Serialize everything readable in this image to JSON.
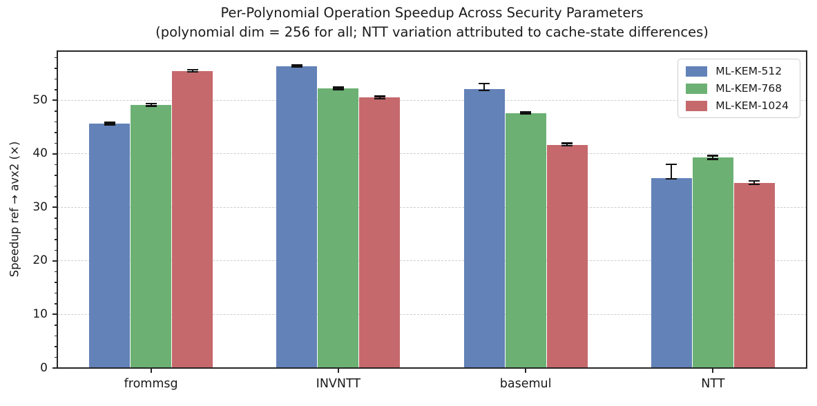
{
  "figure": {
    "title_line1": "Per-Polynomial Operation Speedup Across Security Parameters",
    "title_line2": "(polynomial dim = 256 for all; NTT variation attributed to cache-state differences)",
    "ylabel": "Speedup ref → avx2 (×)",
    "background": "#ffffff",
    "text_color": "#1a1a1a",
    "spine_color": "#262626",
    "grid_color": "#cccccc"
  },
  "chart_data": {
    "type": "bar",
    "title": "Per-Polynomial Operation Speedup Across Security Parameters",
    "subtitle": "(polynomial dim = 256 for all; NTT variation attributed to cache-state differences)",
    "xlabel": "",
    "ylabel": "Speedup ref → avx2 (×)",
    "categories": [
      "frommsg",
      "INVNTT",
      "basemul",
      "NTT"
    ],
    "series": [
      {
        "name": "ML-KEM-512",
        "color": "#6282B8",
        "values": [
          45.6,
          56.4,
          52.1,
          35.5
        ],
        "err_minus": [
          0.2,
          0.2,
          0.3,
          0.2
        ],
        "err_plus": [
          0.3,
          0.2,
          1.1,
          2.6
        ]
      },
      {
        "name": "ML-KEM-768",
        "color": "#6CB173",
        "values": [
          49.1,
          52.2,
          47.6,
          39.3
        ],
        "err_minus": [
          0.2,
          0.2,
          0.2,
          0.3
        ],
        "err_plus": [
          0.3,
          0.25,
          0.25,
          0.4
        ]
      },
      {
        "name": "ML-KEM-1024",
        "color": "#C5696D",
        "values": [
          55.5,
          50.5,
          41.7,
          34.6
        ],
        "err_minus": [
          0.2,
          0.2,
          0.2,
          0.3
        ],
        "err_plus": [
          0.25,
          0.3,
          0.3,
          0.4
        ]
      }
    ],
    "yticks": [
      0,
      10,
      20,
      30,
      40,
      50
    ],
    "ylim": [
      0,
      59.2
    ],
    "minor_tick_step": 2,
    "grid": {
      "axis": "y",
      "style": "dashed"
    },
    "error_bars": true,
    "legend": {
      "position": "upper right",
      "entries": [
        "ML-KEM-512",
        "ML-KEM-768",
        "ML-KEM-1024"
      ]
    }
  }
}
